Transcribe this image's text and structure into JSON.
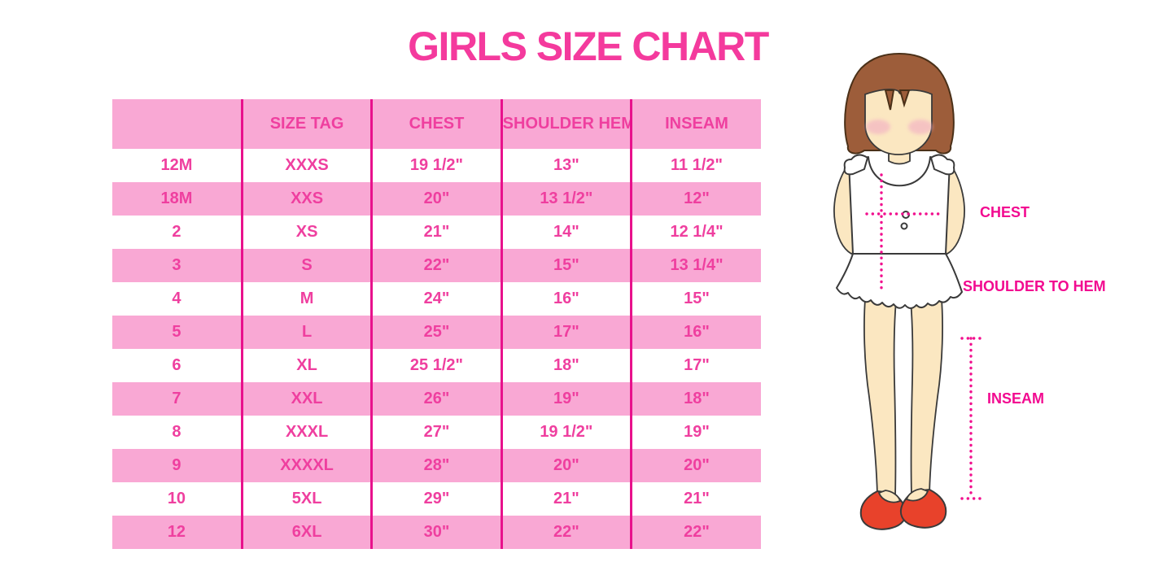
{
  "title": "GIRLS SIZE CHART",
  "chart_data": {
    "type": "table",
    "title": "GIRLS SIZE CHART",
    "columns": [
      "",
      "SIZE TAG",
      "CHEST",
      "SHOULDER HEM",
      "INSEAM"
    ],
    "rows": [
      [
        "12M",
        "XXXS",
        "19 1/2\"",
        "13\"",
        "11 1/2\""
      ],
      [
        "18M",
        "XXS",
        "20\"",
        "13 1/2\"",
        "12\""
      ],
      [
        "2",
        "XS",
        "21\"",
        "14\"",
        "12 1/4\""
      ],
      [
        "3",
        "S",
        "22\"",
        "15\"",
        "13 1/4\""
      ],
      [
        "4",
        "M",
        "24\"",
        "16\"",
        "15\""
      ],
      [
        "5",
        "L",
        "25\"",
        "17\"",
        "16\""
      ],
      [
        "6",
        "XL",
        "25 1/2\"",
        "18\"",
        "17\""
      ],
      [
        "7",
        "XXL",
        "26\"",
        "19\"",
        "18\""
      ],
      [
        "8",
        "XXXL",
        "27\"",
        "19 1/2\"",
        "19\""
      ],
      [
        "9",
        "XXXXL",
        "28\"",
        "20\"",
        "20\""
      ],
      [
        "10",
        "5XL",
        "29\"",
        "21\"",
        "21\""
      ],
      [
        "12",
        "6XL",
        "30\"",
        "22\"",
        "22\""
      ]
    ]
  },
  "figure": {
    "labels": {
      "chest": "CHEST",
      "shoulder_to_hem": "SHOULDER TO HEM",
      "inseam": "INSEAM"
    }
  },
  "colors": {
    "title_pink": "#F43A9D",
    "row_pink": "#F9A8D4",
    "table_text_pink": "#EF3F9F",
    "divider_magenta": "#E8118C",
    "label_magenta": "#F20A90",
    "dotted_line_magenta": "#F1108E",
    "hair_brown": "#9D5D3A",
    "skin": "#FBE7C1",
    "blush_pink": "#F2AEC4",
    "shoe_red": "#E8422B"
  }
}
